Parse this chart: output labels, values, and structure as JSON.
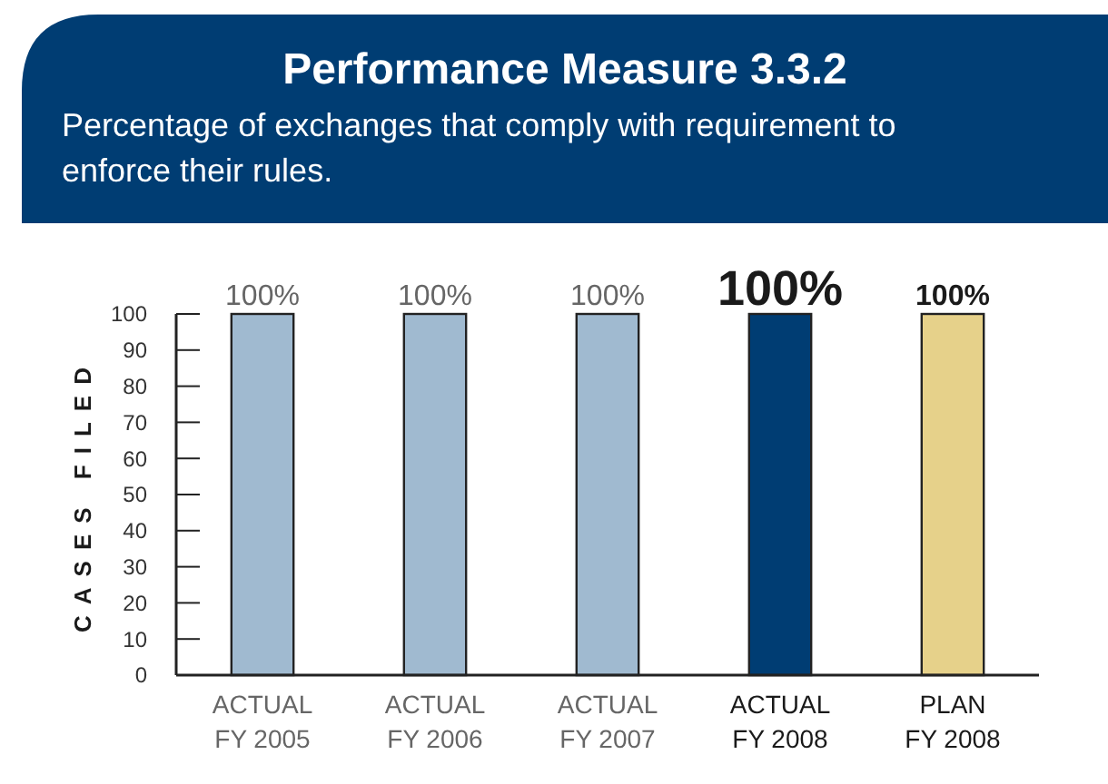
{
  "chart_data": {
    "type": "bar",
    "title": "Performance Measure 3.3.2",
    "subtitle": "Percentage of exchanges that comply with requirement to enforce their rules.",
    "ylabel": "CASES FILED",
    "categories": [
      "ACTUAL\nFY 2005",
      "ACTUAL\nFY 2006",
      "ACTUAL\nFY 2007",
      "ACTUAL\nFY 2008",
      "PLAN\nFY 2008"
    ],
    "values": [
      100,
      100,
      100,
      100,
      100
    ],
    "colors": [
      "#a0bad0",
      "#a0bad0",
      "#a0bad0",
      "#003d73",
      "#e6d18a"
    ],
    "value_labels": [
      "100%",
      "100%",
      "100%",
      "100%",
      "100%"
    ],
    "ylim": [
      0,
      100
    ],
    "yticks": [
      0,
      10,
      20,
      30,
      40,
      50,
      60,
      70,
      80,
      90,
      100
    ],
    "grid": false
  }
}
